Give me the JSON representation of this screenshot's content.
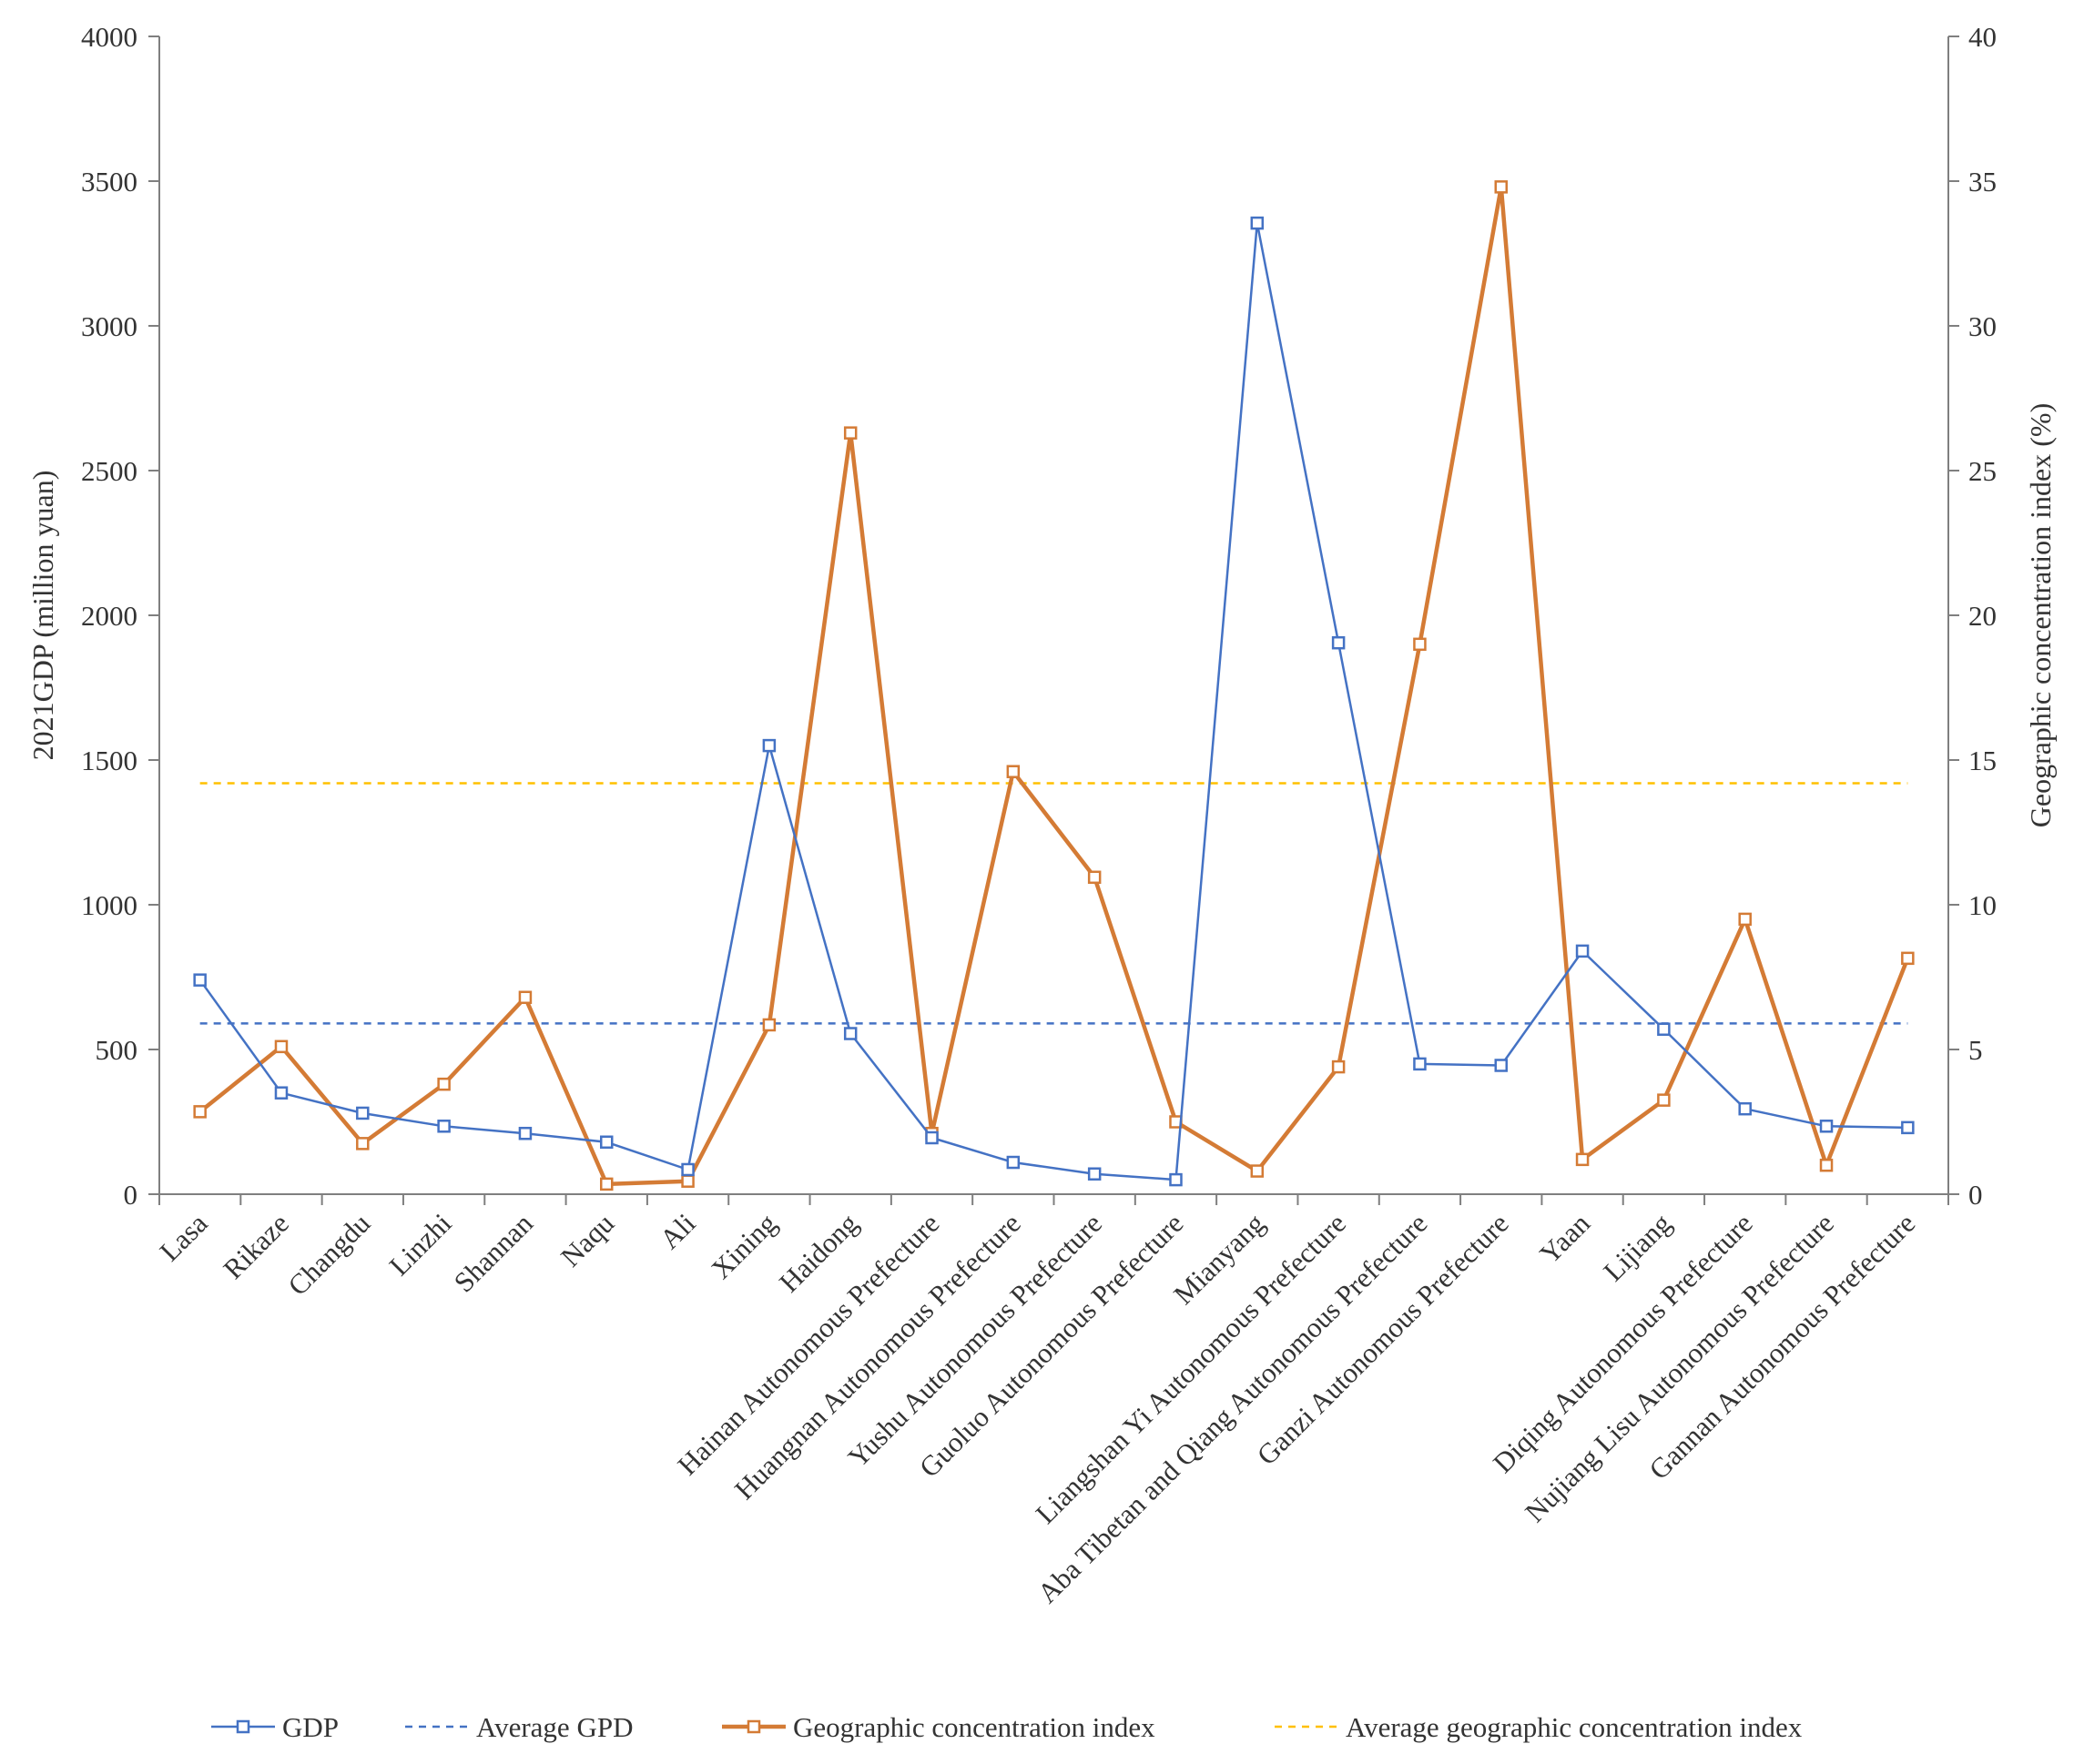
{
  "chart_data": {
    "type": "line",
    "categories": [
      "Lasa",
      "Rikaze",
      "Changdu",
      "Linzhi",
      "Shannan",
      "Naqu",
      "Ali",
      "Xining",
      "Haidong",
      "Hainan Autonomous Prefecture",
      "Huangnan Autonomous Prefecture",
      "Yushu Autonomous Prefecture",
      "Guoluo Autonomous Prefecture",
      "Mianyang",
      "Liangshan Yi Autonomous Prefecture",
      "Aba Tibetan and Qiang Autonomous Prefecture",
      "Ganzi Autonomous Prefecture",
      "Yaan",
      "Lijiang",
      "Diqing Autonomous Prefecture",
      "Nujiang Lisu Autonomous Prefecture",
      "Gannan Autonomous Prefecture"
    ],
    "series": [
      {
        "name": "GDP",
        "axis": "left",
        "color": "#4472c4",
        "marker": "square",
        "values": [
          740,
          350,
          280,
          235,
          210,
          180,
          85,
          1550,
          555,
          195,
          110,
          70,
          50,
          3355,
          1905,
          450,
          445,
          840,
          570,
          295,
          235,
          230
        ]
      },
      {
        "name": "Geographic concentration index",
        "axis": "right",
        "color": "#d47b35",
        "marker": "square",
        "values": [
          2.85,
          5.1,
          1.75,
          3.8,
          6.8,
          0.35,
          0.45,
          5.85,
          26.3,
          2.1,
          14.6,
          10.95,
          2.5,
          0.8,
          4.4,
          19.0,
          34.8,
          1.2,
          3.25,
          9.5,
          1.0,
          8.15
        ]
      }
    ],
    "reference_lines": [
      {
        "name": "Average GPD",
        "axis": "left",
        "value": 590,
        "color": "#4472c4",
        "style": "dashed"
      },
      {
        "name": "Average geographic concentration index",
        "axis": "right",
        "value": 14.2,
        "color": "#ffc000",
        "style": "dashed"
      }
    ],
    "ylabel": "2021GDP (million yuan)",
    "y2label": "Geographic concentration index (%)",
    "ylim": [
      0,
      4000
    ],
    "y2lim": [
      0,
      40
    ],
    "yticks": [
      "0",
      "500",
      "1000",
      "1500",
      "2000",
      "2500",
      "3000",
      "3500",
      "4000"
    ],
    "y2ticks": [
      "0",
      "5",
      "10",
      "15",
      "20",
      "25",
      "30",
      "35",
      "40"
    ],
    "legend": {
      "position": "bottom",
      "entries": [
        "GDP",
        "Average GPD",
        "Geographic concentration index",
        "Average geographic concentration index"
      ]
    },
    "grid": false
  }
}
